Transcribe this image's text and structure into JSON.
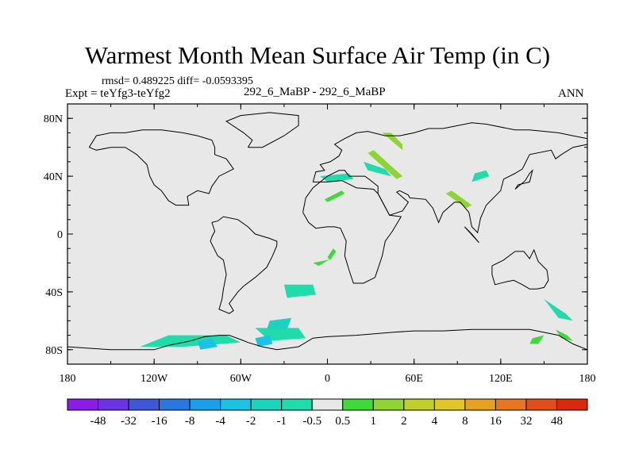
{
  "header": {
    "title": "Warmest Month Mean Surface Air Temp (in C)",
    "stats": "rmsd= 0.489225 diff= -0.0593395",
    "expt": "Expt = teYfg3-teYfg2",
    "center_label": "292_6_MaBP - 292_6_MaBP",
    "season": "ANN"
  },
  "colors": {
    "ocean": "#e8e8e8",
    "coast": "#000000",
    "frame": "#000000"
  },
  "chart_data": {
    "type": "heatmap",
    "title": "Warmest Month Mean Surface Air Temp (in C)",
    "xlabel": "",
    "ylabel": "",
    "xlim": [
      -180,
      180
    ],
    "ylim": [
      -90,
      90
    ],
    "x_ticks": [
      {
        "value": -180,
        "label": "180"
      },
      {
        "value": -120,
        "label": "120W"
      },
      {
        "value": -60,
        "label": "60W"
      },
      {
        "value": 0,
        "label": "0"
      },
      {
        "value": 60,
        "label": "60E"
      },
      {
        "value": 120,
        "label": "120E"
      },
      {
        "value": 180,
        "label": "180"
      }
    ],
    "y_ticks": [
      {
        "value": 80,
        "label": "80N"
      },
      {
        "value": 40,
        "label": "40N"
      },
      {
        "value": 0,
        "label": "0"
      },
      {
        "value": -40,
        "label": "40S"
      },
      {
        "value": -80,
        "label": "80S"
      }
    ],
    "colorbar": {
      "labels": [
        "-48",
        "-32",
        "-16",
        "-8",
        "-4",
        "-2",
        "-1",
        "-0.5",
        "0.5",
        "1",
        "2",
        "4",
        "8",
        "16",
        "32",
        "48"
      ],
      "colors": [
        "#8a1ee6",
        "#6a33e3",
        "#3d57d7",
        "#2b77e0",
        "#1aa0ea",
        "#1ac3e3",
        "#1cd3c0",
        "#20dcab",
        "#e8e8e8",
        "#3fd93a",
        "#8ed434",
        "#bfd02d",
        "#e0c62a",
        "#e7a122",
        "#e8761e",
        "#e14f18",
        "#d8290f"
      ]
    },
    "coastlines": [
      [
        [
          -180,
          -78
        ],
        [
          -150,
          -80
        ],
        [
          -120,
          -80
        ],
        [
          -110,
          -77
        ],
        [
          -95,
          -74
        ],
        [
          -85,
          -71
        ],
        [
          -75,
          -70
        ],
        [
          -68,
          -70
        ],
        [
          -60,
          -73
        ],
        [
          -55,
          -75
        ],
        [
          -45,
          -78
        ],
        [
          -35,
          -80
        ],
        [
          -20,
          -78
        ],
        [
          -10,
          -72
        ],
        [
          0,
          -71
        ],
        [
          20,
          -70
        ],
        [
          45,
          -68
        ],
        [
          60,
          -67
        ],
        [
          80,
          -67
        ],
        [
          100,
          -66
        ],
        [
          120,
          -66
        ],
        [
          140,
          -66
        ],
        [
          160,
          -70
        ],
        [
          170,
          -76
        ],
        [
          180,
          -80
        ]
      ],
      [
        [
          -165,
          60
        ],
        [
          -160,
          68
        ],
        [
          -150,
          70
        ],
        [
          -140,
          70
        ],
        [
          -128,
          72
        ],
        [
          -115,
          72
        ],
        [
          -100,
          70
        ],
        [
          -90,
          68
        ],
        [
          -80,
          65
        ],
        [
          -78,
          60
        ],
        [
          -78,
          55
        ],
        [
          -70,
          52
        ],
        [
          -65,
          45
        ],
        [
          -75,
          40
        ],
        [
          -80,
          33
        ],
        [
          -82,
          28
        ],
        [
          -90,
          30
        ],
        [
          -97,
          26
        ],
        [
          -96,
          20
        ],
        [
          -105,
          20
        ],
        [
          -110,
          23
        ],
        [
          -115,
          30
        ],
        [
          -120,
          34
        ],
        [
          -123,
          40
        ],
        [
          -125,
          48
        ],
        [
          -132,
          55
        ],
        [
          -140,
          60
        ],
        [
          -150,
          60
        ],
        [
          -160,
          58
        ],
        [
          -165,
          60
        ]
      ],
      [
        [
          -80,
          8
        ],
        [
          -78,
          2
        ],
        [
          -80,
          -2
        ],
        [
          -81,
          -5
        ],
        [
          -76,
          -15
        ],
        [
          -72,
          -18
        ],
        [
          -70,
          -28
        ],
        [
          -72,
          -38
        ],
        [
          -73,
          -45
        ],
        [
          -75,
          -52
        ],
        [
          -68,
          -55
        ],
        [
          -65,
          -53
        ],
        [
          -68,
          -48
        ],
        [
          -62,
          -40
        ],
        [
          -58,
          -36
        ],
        [
          -50,
          -30
        ],
        [
          -42,
          -23
        ],
        [
          -38,
          -15
        ],
        [
          -35,
          -8
        ],
        [
          -35,
          -5
        ],
        [
          -40,
          -3
        ],
        [
          -50,
          0
        ],
        [
          -55,
          5
        ],
        [
          -62,
          10
        ],
        [
          -72,
          12
        ],
        [
          -76,
          9
        ],
        [
          -80,
          8
        ]
      ],
      [
        [
          -17,
          15
        ],
        [
          -15,
          25
        ],
        [
          -10,
          32
        ],
        [
          -5,
          36
        ],
        [
          0,
          36
        ],
        [
          10,
          37
        ],
        [
          20,
          32
        ],
        [
          32,
          31
        ],
        [
          35,
          28
        ],
        [
          43,
          13
        ],
        [
          51,
          12
        ],
        [
          45,
          2
        ],
        [
          40,
          -5
        ],
        [
          38,
          -15
        ],
        [
          35,
          -24
        ],
        [
          33,
          -30
        ],
        [
          25,
          -34
        ],
        [
          18,
          -34
        ],
        [
          15,
          -25
        ],
        [
          12,
          -15
        ],
        [
          13,
          -5
        ],
        [
          9,
          4
        ],
        [
          5,
          5
        ],
        [
          0,
          5
        ],
        [
          -8,
          4
        ],
        [
          -13,
          8
        ],
        [
          -17,
          15
        ]
      ],
      [
        [
          -10,
          36
        ],
        [
          -8,
          43
        ],
        [
          -2,
          44
        ],
        [
          -5,
          48
        ],
        [
          2,
          50
        ],
        [
          8,
          54
        ],
        [
          10,
          58
        ],
        [
          5,
          62
        ],
        [
          12,
          66
        ],
        [
          20,
          70
        ],
        [
          28,
          71
        ],
        [
          40,
          68
        ],
        [
          50,
          68
        ],
        [
          60,
          70
        ],
        [
          70,
          73
        ],
        [
          80,
          73
        ],
        [
          100,
          77
        ],
        [
          110,
          76
        ],
        [
          130,
          72
        ],
        [
          140,
          72
        ],
        [
          160,
          70
        ],
        [
          170,
          68
        ],
        [
          180,
          66
        ]
      ],
      [
        [
          180,
          62
        ],
        [
          170,
          60
        ],
        [
          162,
          55
        ],
        [
          158,
          52
        ],
        [
          155,
          58
        ],
        [
          140,
          55
        ],
        [
          135,
          45
        ],
        [
          130,
          42
        ],
        [
          122,
          38
        ],
        [
          120,
          30
        ],
        [
          110,
          20
        ],
        [
          106,
          11
        ],
        [
          104,
          1
        ],
        [
          100,
          5
        ],
        [
          98,
          15
        ],
        [
          92,
          22
        ],
        [
          88,
          22
        ],
        [
          80,
          15
        ],
        [
          77,
          8
        ],
        [
          73,
          18
        ],
        [
          68,
          24
        ],
        [
          57,
          25
        ],
        [
          56,
          27
        ],
        [
          50,
          30
        ],
        [
          48,
          29
        ],
        [
          56,
          22
        ],
        [
          52,
          16
        ],
        [
          43,
          13
        ],
        [
          35,
          28
        ],
        [
          35,
          33
        ],
        [
          30,
          37
        ],
        [
          26,
          40
        ],
        [
          20,
          40
        ],
        [
          15,
          40
        ],
        [
          12,
          44
        ],
        [
          8,
          44
        ],
        [
          0,
          40
        ],
        [
          -5,
          36
        ],
        [
          -10,
          36
        ]
      ],
      [
        [
          114,
          -22
        ],
        [
          122,
          -18
        ],
        [
          130,
          -12
        ],
        [
          136,
          -12
        ],
        [
          140,
          -17
        ],
        [
          143,
          -11
        ],
        [
          146,
          -19
        ],
        [
          152,
          -25
        ],
        [
          153,
          -32
        ],
        [
          150,
          -37
        ],
        [
          145,
          -38
        ],
        [
          140,
          -38
        ],
        [
          135,
          -35
        ],
        [
          129,
          -32
        ],
        [
          124,
          -33
        ],
        [
          116,
          -35
        ],
        [
          114,
          -28
        ],
        [
          114,
          -22
        ]
      ],
      [
        [
          95,
          5
        ],
        [
          105,
          -6
        ],
        [
          100,
          0
        ],
        [
          95,
          5
        ]
      ],
      [
        [
          130,
          31
        ],
        [
          132,
          34
        ],
        [
          136,
          35
        ],
        [
          140,
          36
        ],
        [
          141,
          40
        ],
        [
          142,
          44
        ],
        [
          140,
          42
        ],
        [
          137,
          37
        ],
        [
          130,
          31
        ]
      ],
      [
        [
          -55,
          60
        ],
        [
          -45,
          60
        ],
        [
          -30,
          68
        ],
        [
          -20,
          75
        ],
        [
          -20,
          82
        ],
        [
          -40,
          84
        ],
        [
          -60,
          82
        ],
        [
          -70,
          78
        ],
        [
          -58,
          70
        ],
        [
          -52,
          65
        ],
        [
          -55,
          60
        ]
      ]
    ],
    "anomaly_patches": [
      {
        "class": 10,
        "points": [
          [
            38,
            70
          ],
          [
            44,
            70
          ],
          [
            52,
            62
          ],
          [
            52,
            58
          ],
          [
            45,
            64
          ]
        ]
      },
      {
        "class": 10,
        "points": [
          [
            28,
            56
          ],
          [
            48,
            38
          ],
          [
            52,
            40
          ],
          [
            32,
            58
          ]
        ]
      },
      {
        "class": 10,
        "points": [
          [
            82,
            28
          ],
          [
            96,
            18
          ],
          [
            100,
            20
          ],
          [
            86,
            30
          ]
        ]
      },
      {
        "class": 9,
        "points": [
          [
            -2,
            24
          ],
          [
            10,
            30
          ],
          [
            12,
            28
          ],
          [
            0,
            22
          ]
        ]
      },
      {
        "class": 9,
        "points": [
          [
            -10,
            -20
          ],
          [
            0,
            -18
          ],
          [
            4,
            -16
          ],
          [
            -6,
            -22
          ]
        ]
      },
      {
        "class": 9,
        "points": [
          [
            0,
            -16
          ],
          [
            4,
            -10
          ],
          [
            6,
            -12
          ],
          [
            2,
            -18
          ]
        ]
      },
      {
        "class": 9,
        "points": [
          [
            142,
            -72
          ],
          [
            150,
            -70
          ],
          [
            146,
            -76
          ],
          [
            140,
            -76
          ]
        ]
      },
      {
        "class": 9,
        "points": [
          [
            158,
            -66
          ],
          [
            166,
            -70
          ],
          [
            170,
            -74
          ],
          [
            162,
            -72
          ]
        ]
      },
      {
        "class": 7,
        "points": [
          [
            25,
            50
          ],
          [
            40,
            45
          ],
          [
            44,
            40
          ],
          [
            28,
            44
          ]
        ]
      },
      {
        "class": 7,
        "points": [
          [
            -5,
            40
          ],
          [
            15,
            42
          ],
          [
            18,
            38
          ],
          [
            0,
            36
          ]
        ]
      },
      {
        "class": 7,
        "points": [
          [
            -110,
            -70
          ],
          [
            -70,
            -70
          ],
          [
            -60,
            -75
          ],
          [
            -100,
            -78
          ],
          [
            -130,
            -78
          ]
        ]
      },
      {
        "class": 7,
        "points": [
          [
            -50,
            -65
          ],
          [
            -20,
            -65
          ],
          [
            -15,
            -72
          ],
          [
            -40,
            -74
          ]
        ]
      },
      {
        "class": 7,
        "points": [
          [
            -30,
            -35
          ],
          [
            -10,
            -35
          ],
          [
            -8,
            -42
          ],
          [
            -28,
            -44
          ]
        ]
      },
      {
        "class": 7,
        "points": [
          [
            100,
            36
          ],
          [
            112,
            40
          ],
          [
            110,
            44
          ],
          [
            102,
            42
          ]
        ]
      },
      {
        "class": 7,
        "points": [
          [
            150,
            -45
          ],
          [
            165,
            -55
          ],
          [
            170,
            -60
          ],
          [
            160,
            -58
          ]
        ]
      },
      {
        "class": 6,
        "points": [
          [
            -40,
            -60
          ],
          [
            -25,
            -58
          ],
          [
            -28,
            -66
          ],
          [
            -42,
            -66
          ]
        ]
      },
      {
        "class": 5,
        "points": [
          [
            -90,
            -74
          ],
          [
            -80,
            -72
          ],
          [
            -76,
            -78
          ],
          [
            -88,
            -80
          ]
        ]
      },
      {
        "class": 5,
        "points": [
          [
            -50,
            -72
          ],
          [
            -40,
            -70
          ],
          [
            -38,
            -76
          ],
          [
            -48,
            -78
          ]
        ]
      }
    ]
  }
}
